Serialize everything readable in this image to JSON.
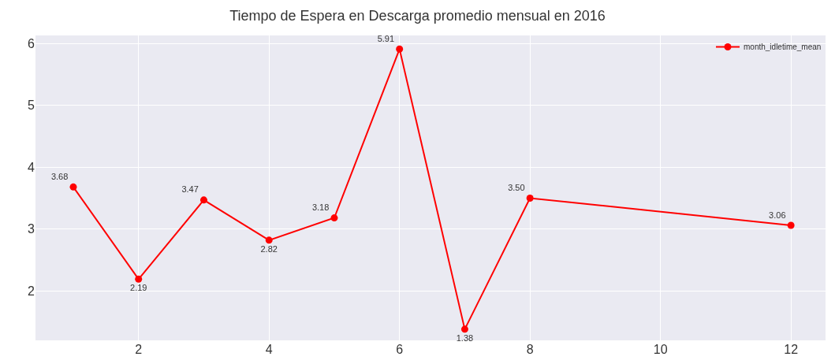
{
  "chart_data": {
    "type": "line",
    "title": "Tiempo de Espera en Descarga promedio mensual en 2016",
    "x": [
      1,
      2,
      3,
      4,
      5,
      6,
      7,
      8,
      12
    ],
    "series": [
      {
        "name": "month_idletime_mean",
        "color": "#ff0000",
        "values": [
          3.68,
          2.19,
          3.47,
          2.82,
          3.18,
          5.91,
          1.38,
          3.5,
          3.06
        ],
        "value_labels": [
          "3.68",
          "2.19",
          "3.47",
          "2.82",
          "3.18",
          "5.91",
          "1.38",
          "3.50",
          "3.06"
        ]
      }
    ],
    "xlim": [
      0.42,
      12.53
    ],
    "xticks": [
      2,
      4,
      6,
      8,
      10,
      12
    ],
    "ylim": [
      1.2,
      6.13
    ],
    "yticks": [
      2,
      3,
      4,
      5,
      6
    ],
    "grid": true,
    "legend": "top right",
    "marker": "circle",
    "line_style": "solid"
  }
}
